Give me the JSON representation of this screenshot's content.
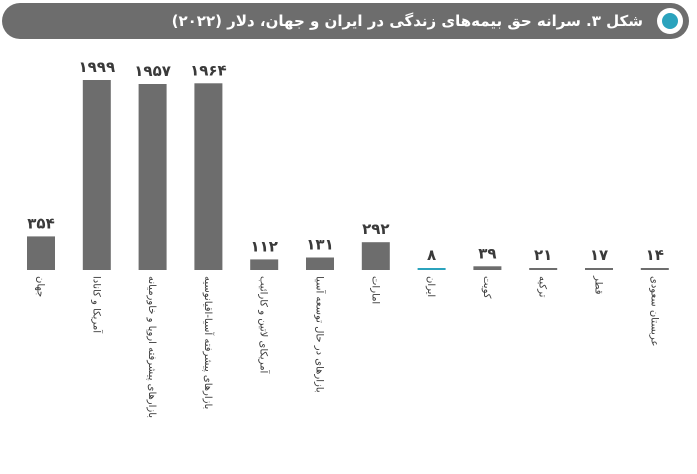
{
  "header": {
    "title": "شکل ۳. سرانه حق بیمه‌های زندگی در  ایران و جهان، دلار (۲۰۲۲)"
  },
  "colors": {
    "bar": "#6d6d6d",
    "highlight": "#2ba3bd",
    "label": "#3a3a3a"
  },
  "chart_data": {
    "type": "bar",
    "title": "شکل ۳. سرانه حق بیمه‌های زندگی در  ایران و جهان، دلار (۲۰۲۲)",
    "xlabel": "",
    "ylabel": "",
    "grid": false,
    "legend": "none",
    "ylim": [
      0,
      2000
    ],
    "categories": [
      "جهان",
      "آمریکا و کانادا",
      "بازارهای پیشرفته اروپا و خاورمیانه",
      "بازارهای پیشرفته آسیا-اقیانوسیه",
      "آمریکای لاتین و کارائیب",
      "بازارهای در حال توسعه آسیا",
      "امارات",
      "ایران",
      "کویت",
      "ترکیه",
      "قطر",
      "عربستان سعودی"
    ],
    "values": [
      354,
      1999,
      1957,
      1964,
      112,
      131,
      292,
      8,
      39,
      21,
      17,
      14
    ],
    "value_labels": [
      "۳۵۴",
      "۱۹۹۹",
      "۱۹۵۷",
      "۱۹۶۴",
      "۱۱۲",
      "۱۳۱",
      "۲۹۲",
      "۸",
      "۳۹",
      "۲۱",
      "۱۷",
      "۱۴"
    ],
    "highlight_category": "ایران"
  }
}
